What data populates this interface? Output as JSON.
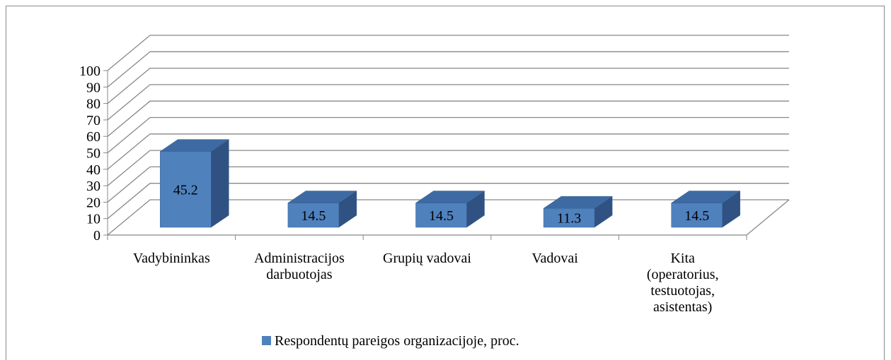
{
  "chart_data": {
    "type": "bar3d",
    "categories": [
      "Vadybininkas",
      "Administracijos\ndarbuotojas",
      "Grupių vadovai",
      "Vadovai",
      "Kita\n(operatorius,\ntestuotojas,\nasistentas)"
    ],
    "series": [
      {
        "name": "Respondentų pareigos organizacijoje, proc.",
        "color": "#4f81bd",
        "values": [
          45.2,
          14.5,
          14.5,
          11.3,
          14.5
        ]
      }
    ],
    "ylim": [
      0,
      100
    ],
    "yticks": [
      0,
      10,
      20,
      30,
      40,
      50,
      60,
      70,
      80,
      90,
      100
    ],
    "grid": true,
    "legend": "bottom"
  }
}
